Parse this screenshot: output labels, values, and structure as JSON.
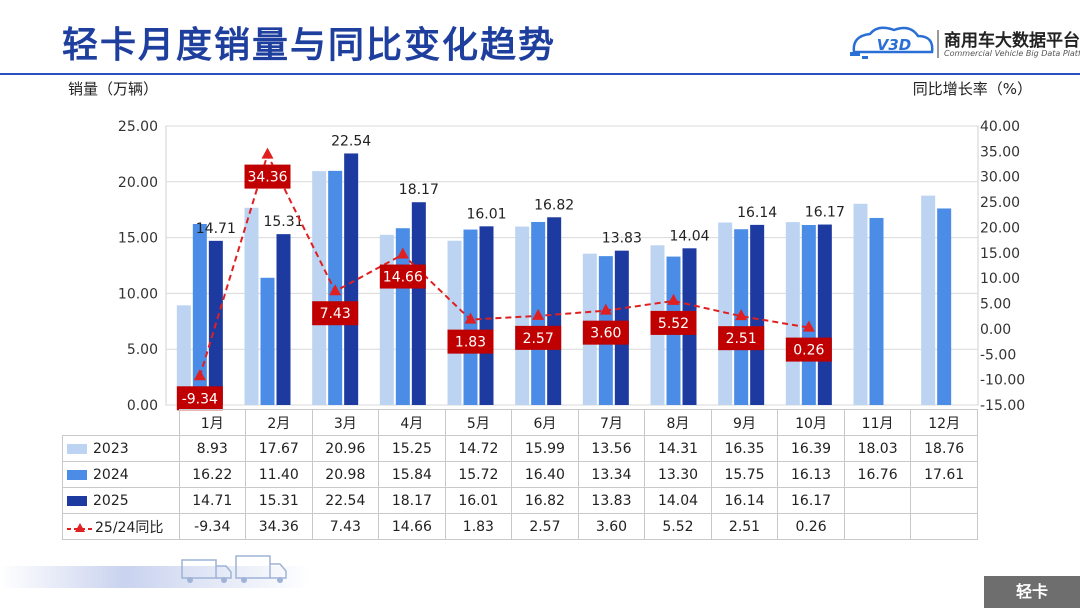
{
  "page": {
    "title": "轻卡月度销量与同比变化趋势",
    "section_tag": "轻卡"
  },
  "logo": {
    "mark_text": "V3D",
    "name": "商用车大数据平台",
    "subtitle": "Commercial Vehicle Big Data Platform"
  },
  "colors": {
    "title": "#1f3f9e",
    "s2023": "#bcd4f2",
    "s2024": "#4a8ce6",
    "s2025": "#1c3aa0",
    "yoy_line": "#e02020",
    "yoy_label_bg": "#c00000"
  },
  "chart_data": {
    "type": "bar",
    "categories": [
      "1月",
      "2月",
      "3月",
      "4月",
      "5月",
      "6月",
      "7月",
      "8月",
      "9月",
      "10月",
      "11月",
      "12月"
    ],
    "ylabel": "销量（万辆）",
    "ylabel_right": "同比增长率（%）",
    "ylim": [
      0,
      25
    ],
    "y_ticks": [
      "0.00",
      "5.00",
      "10.00",
      "15.00",
      "20.00",
      "25.00"
    ],
    "y2lim": [
      -15,
      40
    ],
    "y2_ticks": [
      "-15.00",
      "-10.00",
      "-5.00",
      "0.00",
      "5.00",
      "10.00",
      "15.00",
      "20.00",
      "25.00",
      "30.00",
      "35.00",
      "40.00"
    ],
    "grid": true,
    "series": [
      {
        "name": "2023",
        "type": "bar",
        "axis": "left",
        "values": [
          8.93,
          17.67,
          20.96,
          15.25,
          14.72,
          15.99,
          13.56,
          14.31,
          16.35,
          16.39,
          18.03,
          18.76
        ]
      },
      {
        "name": "2024",
        "type": "bar",
        "axis": "left",
        "values": [
          16.22,
          11.4,
          20.98,
          15.84,
          15.72,
          16.4,
          13.34,
          13.3,
          15.75,
          16.13,
          16.76,
          17.61
        ]
      },
      {
        "name": "2025",
        "type": "bar",
        "axis": "left",
        "values": [
          14.71,
          15.31,
          22.54,
          18.17,
          16.01,
          16.82,
          13.83,
          14.04,
          16.14,
          16.17,
          null,
          null
        ],
        "labels": [
          "14.71",
          "15.31",
          "22.54",
          "18.17",
          "16.01",
          "16.82",
          "13.83",
          "14.04",
          "16.14",
          "16.17",
          "",
          ""
        ]
      },
      {
        "name": "25/24同比",
        "type": "line",
        "axis": "right",
        "values": [
          -9.34,
          34.36,
          7.43,
          14.66,
          1.83,
          2.57,
          3.6,
          5.52,
          2.51,
          0.26,
          null,
          null
        ],
        "labels": [
          "-9.34",
          "34.36",
          "7.43",
          "14.66",
          "1.83",
          "2.57",
          "3.60",
          "5.52",
          "2.51",
          "0.26",
          "",
          ""
        ]
      }
    ],
    "table_rows": [
      {
        "label": "2023",
        "cells": [
          "8.93",
          "17.67",
          "20.96",
          "15.25",
          "14.72",
          "15.99",
          "13.56",
          "14.31",
          "16.35",
          "16.39",
          "18.03",
          "18.76"
        ]
      },
      {
        "label": "2024",
        "cells": [
          "16.22",
          "11.40",
          "20.98",
          "15.84",
          "15.72",
          "16.40",
          "13.34",
          "13.30",
          "15.75",
          "16.13",
          "16.76",
          "17.61"
        ]
      },
      {
        "label": "2025",
        "cells": [
          "14.71",
          "15.31",
          "22.54",
          "18.17",
          "16.01",
          "16.82",
          "13.83",
          "14.04",
          "16.14",
          "16.17",
          "",
          ""
        ]
      },
      {
        "label": "25/24同比",
        "cells": [
          "-9.34",
          "34.36",
          "7.43",
          "14.66",
          "1.83",
          "2.57",
          "3.60",
          "5.52",
          "2.51",
          "0.26",
          "",
          ""
        ]
      }
    ]
  }
}
